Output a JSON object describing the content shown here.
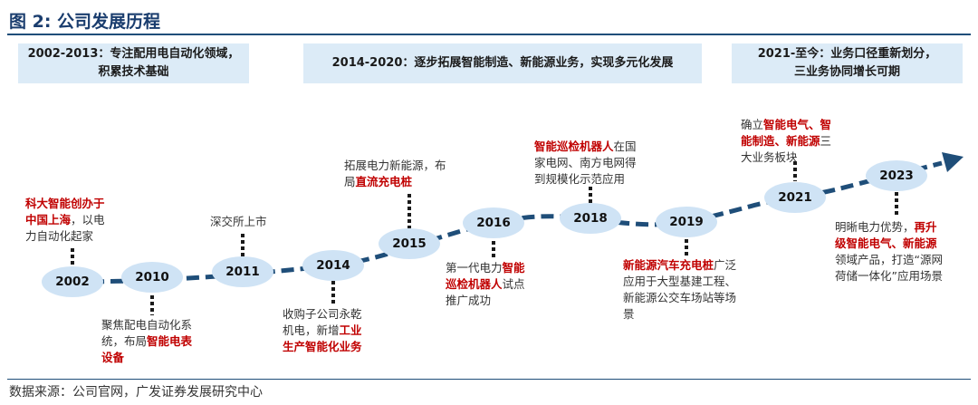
{
  "title": "图 2: 公司发展历程",
  "phases": [
    {
      "lines": [
        "2002-2013：专注配用电自动化领域，",
        "积累技术基础"
      ]
    },
    {
      "lines": [
        "2014-2020：逐步拓展智能制造、新能源业务，实现多元化发展"
      ]
    },
    {
      "lines": [
        "2021-至今：业务口径重新划分，",
        "三业务协同增长可期"
      ]
    }
  ],
  "milestones": [
    {
      "year": "2002"
    },
    {
      "year": "2010"
    },
    {
      "year": "2011"
    },
    {
      "year": "2014"
    },
    {
      "year": "2015"
    },
    {
      "year": "2016"
    },
    {
      "year": "2018"
    },
    {
      "year": "2019"
    },
    {
      "year": "2021"
    },
    {
      "year": "2023"
    }
  ],
  "annotations": {
    "a2002": {
      "hl1": "科大智能创办于",
      "hl2": "中国上海",
      "t1": "，以电",
      "t2": "力自动化起家"
    },
    "a2010": {
      "t1": "聚焦配电自动化系",
      "t2": "统，布局",
      "hl1": "智能电表",
      "hl2": "设备"
    },
    "a2011": {
      "t1": "深交所上市"
    },
    "a2014": {
      "t1": "收购子公司永乾",
      "t2": "机电，新增",
      "hl1": "工业",
      "hl2": "生产智能化业务"
    },
    "a2015": {
      "t1": "拓展电力新能源，布",
      "t2": "局",
      "hl1": "直流充电桩"
    },
    "a2016": {
      "t1": "第一代电力",
      "hl1": "智能",
      "hl2": "巡检机器人",
      "t2": "试点",
      "t3": "推广成功"
    },
    "a2018": {
      "hl1": "智能巡检机器人",
      "t1": "在国",
      "t2": "家电网、南方电网得",
      "t3": "到规模化示范应用"
    },
    "a2019": {
      "hl1": "新能源汽车充电桩",
      "t1": "广泛",
      "t2": "应用于大型基建工程、",
      "t3": "新能源公交车场站等场",
      "t4": "景"
    },
    "a2021": {
      "t1": "确立",
      "hl1": "智能电气、智",
      "hl2": "能制造、新能源",
      "t2": "三",
      "t3": "大业务板块"
    },
    "a2023": {
      "t1": "明晰电力优势，",
      "hl1": "再升",
      "hl2": "级智能电气、新能源",
      "t2": "领域产品，打造“源网",
      "t3": "荷储一体化”应用场景"
    }
  },
  "source": "数据来源：公司官网，广发证券发展研究中心",
  "colors": {
    "curve": "#1f4e79",
    "ellipse": "#cfe3f5",
    "highlight": "#c00000",
    "phase_bg": "#dcebf7",
    "title": "#1a3d6e"
  }
}
